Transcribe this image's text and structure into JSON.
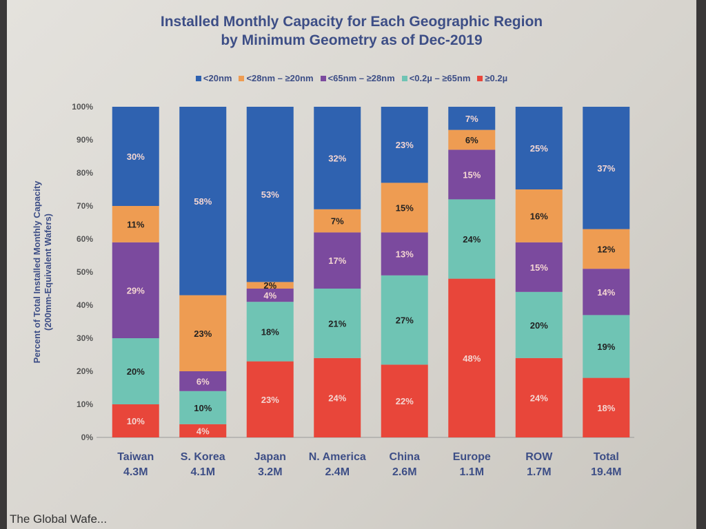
{
  "chart_data": {
    "type": "bar",
    "stacked": true,
    "title": "Installed Monthly Capacity for Each Geographic Region by Minimum Geometry as of Dec-2019",
    "title_lines": [
      "Installed Monthly Capacity for Each Geographic Region",
      "by Minimum Geometry as of Dec-2019"
    ],
    "ylabel": "Percent of Total Installed Monthly Capacity",
    "ylabel2": "(200mm-Equivalent Wafers)",
    "ylim": [
      0,
      100
    ],
    "yticks": [
      "0%",
      "10%",
      "20%",
      "30%",
      "40%",
      "50%",
      "60%",
      "70%",
      "80%",
      "90%",
      "100%"
    ],
    "legend_position": "top",
    "categories": [
      "Taiwan",
      "S. Korea",
      "Japan",
      "N. America",
      "China",
      "Europe",
      "ROW",
      "Total"
    ],
    "category_totals": [
      "4.3M",
      "4.1M",
      "3.2M",
      "2.4M",
      "2.6M",
      "1.1M",
      "1.7M",
      "19.4M"
    ],
    "series": [
      {
        "name": "≥0.2µ",
        "color": "#e8463a",
        "values": [
          10,
          4,
          23,
          24,
          22,
          48,
          24,
          18
        ]
      },
      {
        "name": "<0.2µ – ≥65nm",
        "color": "#6fc4b4",
        "values": [
          20,
          10,
          18,
          21,
          27,
          24,
          20,
          19
        ]
      },
      {
        "name": "<65nm – ≥28nm",
        "color": "#7b4a9e",
        "values": [
          29,
          6,
          4,
          17,
          13,
          15,
          15,
          14
        ]
      },
      {
        "name": "<28nm – ≥20nm",
        "color": "#ee9c52",
        "values": [
          11,
          23,
          2,
          7,
          15,
          6,
          16,
          12
        ]
      },
      {
        "name": "<20nm",
        "color": "#2f62b0",
        "values": [
          30,
          58,
          53,
          32,
          23,
          7,
          25,
          37
        ]
      }
    ],
    "legend_order": [
      4,
      3,
      2,
      1,
      0
    ]
  },
  "footer_text": "The Global Wafe..."
}
